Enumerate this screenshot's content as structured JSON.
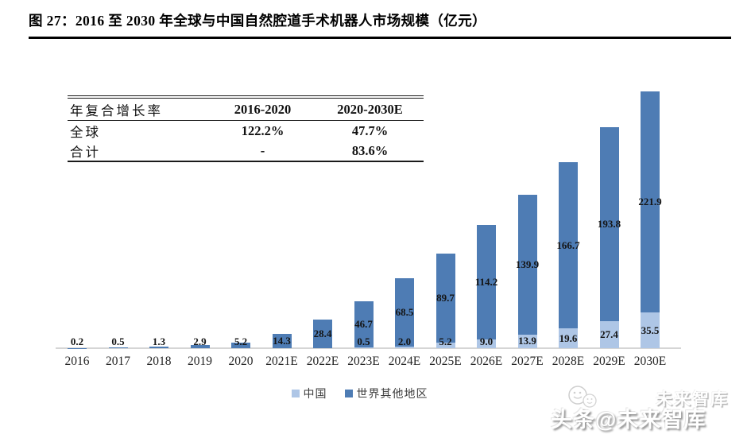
{
  "figure": {
    "title": "图 27：2016 至 2030 年全球与中国自然腔道手术机器人市场规模（亿元）"
  },
  "table": {
    "headers": [
      "年复合增长率",
      "2016-2020",
      "2020-2030E"
    ],
    "rows": [
      {
        "label": "全球",
        "values": [
          "122.2%",
          "47.7%"
        ]
      },
      {
        "label": "合计",
        "values": [
          "-",
          "83.6%"
        ]
      }
    ]
  },
  "chart_data": {
    "type": "bar",
    "stacked": true,
    "title": "2016 至 2030 年全球与中国自然腔道手术机器人市场规模（亿元）",
    "unit": "亿元",
    "grid": false,
    "legend_position": "bottom",
    "axis_color": "#d5d5d5",
    "value_label_color": "#141414",
    "ylim": [
      0,
      260
    ],
    "categories": [
      "2016",
      "2017",
      "2018",
      "2019",
      "2020",
      "2021E",
      "2022E",
      "2023E",
      "2024E",
      "2025E",
      "2026E",
      "2027E",
      "2028E",
      "2029E",
      "2030E"
    ],
    "series": [
      {
        "name": "中国",
        "color": "#aec6e6",
        "values": [
          0,
          0,
          0,
          0,
          0,
          0,
          0,
          0.5,
          2,
          5.2,
          9,
          13.9,
          19.6,
          27.4,
          35.5
        ],
        "labels": [
          "",
          "",
          "",
          "",
          "",
          "",
          "",
          "0.5",
          "2.0",
          "5.2",
          "9.0",
          "13.9",
          "19.6",
          "27.4",
          "35.5"
        ]
      },
      {
        "name": "世界其他地区",
        "color": "#4e7cb4",
        "values": [
          0.2,
          0.5,
          1.3,
          2.9,
          5.2,
          14.3,
          28.4,
          46.7,
          68.5,
          89.7,
          114.2,
          139.9,
          166.7,
          193.8,
          221.9
        ],
        "labels": [
          "0.2",
          "0.5",
          "1.3",
          "2.9",
          "5.2",
          "14.3",
          "28.4",
          "46.7",
          "68.5",
          "89.7",
          "114.2",
          "139.9",
          "166.7",
          "193.8",
          "221.9"
        ]
      }
    ]
  },
  "watermark": {
    "main": "头条@未来智库",
    "secondary": "未来智库",
    "logo": "smiley-chat-bubbles-icon"
  }
}
